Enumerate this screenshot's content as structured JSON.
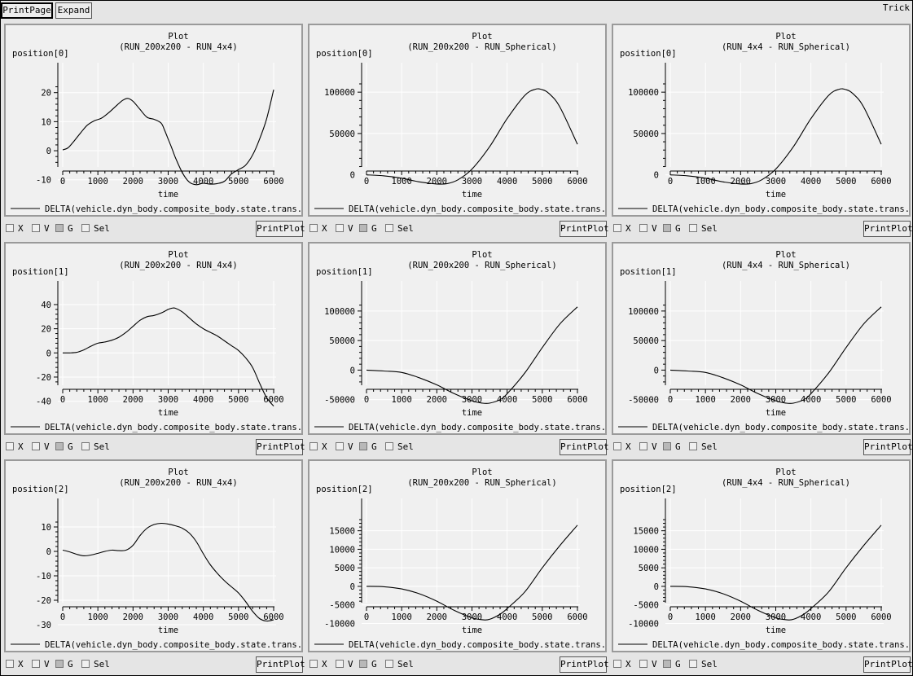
{
  "toolbar": {
    "print_page": "PrintPage",
    "expand": "Expand",
    "app_label": "Trick"
  },
  "controls": {
    "x": "X",
    "v": "V",
    "g": "G",
    "sel": "Sel",
    "print_plot": "PrintPlot"
  },
  "chart_data": [
    {
      "type": "line",
      "title": "Plot",
      "subtitle": "(RUN_200x200 - RUN_4x4)",
      "ylabel": "position[0]",
      "xlabel": "time",
      "xlim": [
        0,
        6000
      ],
      "ylim": [
        -14,
        23
      ],
      "xticks": [
        0,
        1000,
        2000,
        3000,
        4000,
        5000,
        6000
      ],
      "yticks": [
        20,
        10,
        0,
        -10
      ],
      "ytick_labels": [
        "20",
        "10",
        "0",
        "-10"
      ],
      "legend": "DELTA(vehicle.dyn_body.composite_body.state.trans.pos",
      "x": [
        0,
        150,
        300,
        500,
        700,
        900,
        1100,
        1300,
        1500,
        1700,
        1850,
        2000,
        2200,
        2400,
        2600,
        2800,
        2900,
        3000,
        3100,
        3200,
        3400,
        3600,
        3800,
        4000,
        4200,
        4400,
        4600,
        4800,
        5000,
        5200,
        5400,
        5600,
        5800,
        6000
      ],
      "y": [
        0.3,
        1,
        3,
        6,
        8.8,
        10.3,
        11.2,
        13,
        15.2,
        17.3,
        18,
        17,
        14.2,
        11.5,
        10.8,
        9.5,
        7,
        4,
        1,
        -2.2,
        -7.5,
        -10.8,
        -11.7,
        -11.2,
        -11.5,
        -11.3,
        -10.5,
        -8,
        -6.5,
        -5,
        -1.5,
        4,
        11,
        21
      ]
    },
    {
      "type": "line",
      "title": "Plot",
      "subtitle": "(RUN_200x200 - RUN_Spherical)",
      "ylabel": "position[0]",
      "xlabel": "time",
      "xlim": [
        0,
        6000
      ],
      "ylim": [
        -20000,
        110000
      ],
      "xticks": [
        0,
        1000,
        2000,
        3000,
        4000,
        5000,
        6000
      ],
      "yticks": [
        100000,
        50000,
        0
      ],
      "ytick_labels": [
        "100000",
        "50000",
        "0"
      ],
      "legend": "DELTA(vehicle.dyn_body.composite_body.state.trans.pos",
      "x": [
        0,
        500,
        1000,
        1500,
        2000,
        2300,
        2600,
        3000,
        3500,
        4000,
        4500,
        4800,
        5000,
        5200,
        5500,
        6000
      ],
      "y": [
        0,
        -1200,
        -4000,
        -8500,
        -11000,
        -10500,
        -6000,
        7000,
        34000,
        68000,
        96000,
        103500,
        103000,
        98000,
        82000,
        37000
      ]
    },
    {
      "type": "line",
      "title": "Plot",
      "subtitle": "(RUN_4x4 - RUN_Spherical)",
      "ylabel": "position[0]",
      "xlabel": "time",
      "xlim": [
        0,
        6000
      ],
      "ylim": [
        -20000,
        110000
      ],
      "xticks": [
        0,
        1000,
        2000,
        3000,
        4000,
        5000,
        6000
      ],
      "yticks": [
        100000,
        50000,
        0
      ],
      "ytick_labels": [
        "100000",
        "50000",
        "0"
      ],
      "legend": "DELTA(vehicle.dyn_body.composite_body.state.trans.pos",
      "x": [
        0,
        500,
        1000,
        1500,
        2000,
        2300,
        2600,
        3000,
        3500,
        4000,
        4500,
        4800,
        5000,
        5200,
        5500,
        6000
      ],
      "y": [
        0,
        -1200,
        -4000,
        -8500,
        -11000,
        -10500,
        -6000,
        7000,
        34000,
        68000,
        96000,
        103500,
        103000,
        98000,
        82000,
        37000
      ]
    },
    {
      "type": "line",
      "title": "Plot",
      "subtitle": "(RUN_200x200 - RUN_4x4)",
      "ylabel": "position[1]",
      "xlabel": "time",
      "xlim": [
        0,
        6000
      ],
      "ylim": [
        -47,
        42
      ],
      "xticks": [
        0,
        1000,
        2000,
        3000,
        4000,
        5000,
        6000
      ],
      "yticks": [
        40,
        20,
        0,
        -20,
        -40
      ],
      "ytick_labels": [
        "40",
        "20",
        "0",
        "-20",
        "-40"
      ],
      "legend": "DELTA(vehicle.dyn_body.composite_body.state.trans.pos",
      "x": [
        0,
        200,
        400,
        600,
        800,
        1000,
        1200,
        1400,
        1600,
        1800,
        2000,
        2200,
        2400,
        2600,
        2800,
        3000,
        3100,
        3200,
        3400,
        3600,
        3800,
        4000,
        4200,
        4400,
        4600,
        4800,
        5000,
        5200,
        5400,
        5600,
        5800,
        6000
      ],
      "y": [
        0,
        0,
        0.5,
        2.5,
        5.5,
        8,
        9,
        10.5,
        13,
        17,
        22,
        27,
        30,
        31,
        33,
        36,
        37,
        37,
        34,
        29,
        24,
        20,
        17,
        14,
        10,
        6,
        2,
        -4,
        -12,
        -25,
        -37,
        -44
      ]
    },
    {
      "type": "line",
      "title": "Plot",
      "subtitle": "(RUN_200x200 - RUN_Spherical)",
      "ylabel": "position[1]",
      "xlabel": "time",
      "xlim": [
        0,
        6000
      ],
      "ylim": [
        -67000,
        115000
      ],
      "xticks": [
        0,
        1000,
        2000,
        3000,
        4000,
        5000,
        6000
      ],
      "yticks": [
        100000,
        50000,
        0,
        -50000
      ],
      "ytick_labels": [
        "100000",
        "50000",
        "0",
        "-50000"
      ],
      "legend": "DELTA(vehicle.dyn_body.composite_body.state.trans.pos",
      "x": [
        0,
        500,
        1000,
        1500,
        2000,
        2500,
        3000,
        3300,
        3500,
        3800,
        4000,
        4500,
        5000,
        5500,
        6000
      ],
      "y": [
        0,
        -1500,
        -4000,
        -13000,
        -25000,
        -40000,
        -52000,
        -56000,
        -56000,
        -50000,
        -40000,
        -5000,
        38000,
        78000,
        107000
      ]
    },
    {
      "type": "line",
      "title": "Plot",
      "subtitle": "(RUN_4x4 - RUN_Spherical)",
      "ylabel": "position[1]",
      "xlabel": "time",
      "xlim": [
        0,
        6000
      ],
      "ylim": [
        -67000,
        115000
      ],
      "xticks": [
        0,
        1000,
        2000,
        3000,
        4000,
        5000,
        6000
      ],
      "yticks": [
        100000,
        50000,
        0,
        -50000
      ],
      "ytick_labels": [
        "100000",
        "50000",
        "0",
        "-50000"
      ],
      "legend": "DELTA(vehicle.dyn_body.composite_body.state.trans.pos",
      "x": [
        0,
        500,
        1000,
        1500,
        2000,
        2500,
        3000,
        3300,
        3500,
        3800,
        4000,
        4500,
        5000,
        5500,
        6000
      ],
      "y": [
        0,
        -1500,
        -4000,
        -13000,
        -25000,
        -40000,
        -52000,
        -56000,
        -56000,
        -50000,
        -40000,
        -5000,
        38000,
        78000,
        107000
      ]
    },
    {
      "type": "line",
      "title": "Plot",
      "subtitle": "(RUN_200x200 - RUN_4x4)",
      "ylabel": "position[2]",
      "xlabel": "time",
      "xlim": [
        0,
        6000
      ],
      "ylim": [
        -31,
        13
      ],
      "xticks": [
        0,
        1000,
        2000,
        3000,
        4000,
        5000,
        6000
      ],
      "yticks": [
        10,
        0,
        -10,
        -20,
        -30
      ],
      "ytick_labels": [
        "10",
        "0",
        "-10",
        "-20",
        "-30"
      ],
      "legend": "DELTA(vehicle.dyn_body.composite_body.state.trans.pos",
      "x": [
        0,
        200,
        400,
        600,
        800,
        1000,
        1200,
        1400,
        1600,
        1800,
        2000,
        2200,
        2400,
        2600,
        2800,
        3000,
        3200,
        3400,
        3600,
        3800,
        4000,
        4200,
        4400,
        4600,
        4800,
        5000,
        5200,
        5400,
        5600,
        5800,
        6000
      ],
      "y": [
        0.5,
        -0.2,
        -1.2,
        -1.8,
        -1.5,
        -0.8,
        0,
        0.5,
        0.3,
        0.5,
        2.5,
        6.5,
        9.5,
        11,
        11.5,
        11.2,
        10.5,
        9.5,
        7.5,
        4,
        -1,
        -5.5,
        -9,
        -12,
        -14.5,
        -17,
        -20.5,
        -24.5,
        -27.5,
        -28.5,
        -28
      ]
    },
    {
      "type": "line",
      "title": "Plot",
      "subtitle": "(RUN_200x200 - RUN_Spherical)",
      "ylabel": "position[2]",
      "xlabel": "time",
      "xlim": [
        0,
        6000
      ],
      "ylim": [
        -11000,
        18000
      ],
      "xticks": [
        0,
        1000,
        2000,
        3000,
        4000,
        5000,
        6000
      ],
      "yticks": [
        15000,
        10000,
        5000,
        0,
        -5000,
        -10000
      ],
      "ytick_labels": [
        "15000",
        "10000",
        "5000",
        "0",
        "-5000",
        "-10000"
      ],
      "legend": "DELTA(vehicle.dyn_body.composite_body.state.trans.pos",
      "x": [
        0,
        500,
        1000,
        1500,
        2000,
        2500,
        3000,
        3300,
        3500,
        3800,
        4000,
        4500,
        5000,
        5500,
        6000
      ],
      "y": [
        0,
        -100,
        -700,
        -2000,
        -4000,
        -6500,
        -8500,
        -9000,
        -8900,
        -7500,
        -6000,
        -1500,
        5000,
        11000,
        16500
      ]
    },
    {
      "type": "line",
      "title": "Plot",
      "subtitle": "(RUN_4x4 - RUN_Spherical)",
      "ylabel": "position[2]",
      "xlabel": "time",
      "xlim": [
        0,
        6000
      ],
      "ylim": [
        -11000,
        18000
      ],
      "xticks": [
        0,
        1000,
        2000,
        3000,
        4000,
        5000,
        6000
      ],
      "yticks": [
        15000,
        10000,
        5000,
        0,
        -5000,
        -10000
      ],
      "ytick_labels": [
        "15000",
        "10000",
        "5000",
        "0",
        "-5000",
        "-10000"
      ],
      "legend": "DELTA(vehicle.dyn_body.composite_body.state.trans.pos",
      "x": [
        0,
        500,
        1000,
        1500,
        2000,
        2500,
        3000,
        3300,
        3500,
        3800,
        4000,
        4500,
        5000,
        5500,
        6000
      ],
      "y": [
        0,
        -100,
        -700,
        -2000,
        -4000,
        -6500,
        -8500,
        -9000,
        -8900,
        -7500,
        -6000,
        -1500,
        5000,
        11000,
        16500
      ]
    }
  ]
}
